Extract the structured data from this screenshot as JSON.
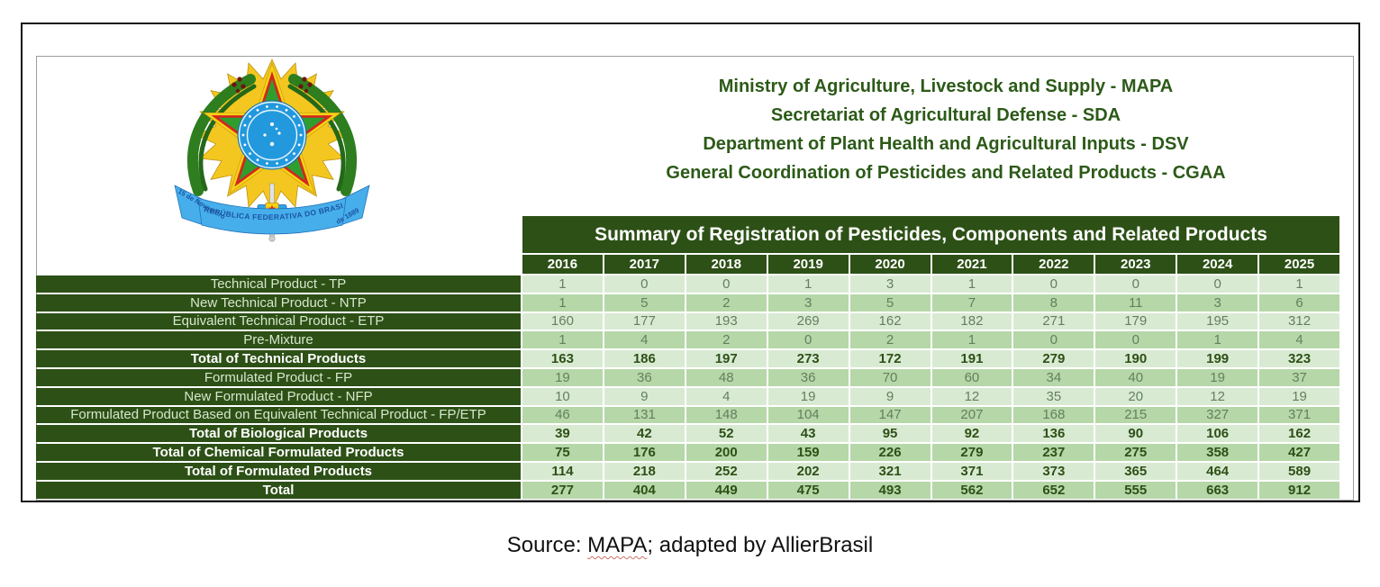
{
  "header": {
    "lines": [
      "Ministry of Agriculture, Livestock and Supply - MAPA",
      "Secretariat of Agricultural Defense - SDA",
      "Department of Plant Health and Agricultural Inputs - DSV",
      "General Coordination of Pesticides and Related Products - CGAA"
    ]
  },
  "emblem": {
    "name": "Coat of arms of Brazil",
    "ribbon_text": "REPÚBLICA FEDERATIVA DO BRASIL",
    "ribbon_left": "15 de Novembro",
    "ribbon_right": "de 1889"
  },
  "table": {
    "title": "Summary of Registration of Pesticides, Components and Related Products",
    "years": [
      "2016",
      "2017",
      "2018",
      "2019",
      "2020",
      "2021",
      "2022",
      "2023",
      "2024",
      "2025"
    ],
    "rows": [
      {
        "label": "Technical Product - TP",
        "bold": false,
        "values": [
          1,
          0,
          0,
          1,
          3,
          1,
          0,
          0,
          0,
          1
        ]
      },
      {
        "label": "New Technical Product - NTP",
        "bold": false,
        "values": [
          1,
          5,
          2,
          3,
          5,
          7,
          8,
          11,
          3,
          6
        ]
      },
      {
        "label": "Equivalent Technical Product - ETP",
        "bold": false,
        "values": [
          160,
          177,
          193,
          269,
          162,
          182,
          271,
          179,
          195,
          312
        ]
      },
      {
        "label": "Pre-Mixture",
        "bold": false,
        "values": [
          1,
          4,
          2,
          0,
          2,
          1,
          0,
          0,
          1,
          4
        ]
      },
      {
        "label": "Total of Technical Products",
        "bold": true,
        "values": [
          163,
          186,
          197,
          273,
          172,
          191,
          279,
          190,
          199,
          323
        ]
      },
      {
        "label": "Formulated Product - FP",
        "bold": false,
        "values": [
          19,
          36,
          48,
          36,
          70,
          60,
          34,
          40,
          19,
          37
        ]
      },
      {
        "label": "New Formulated Product - NFP",
        "bold": false,
        "values": [
          10,
          9,
          4,
          19,
          9,
          12,
          35,
          20,
          12,
          19
        ]
      },
      {
        "label": "Formulated Product Based on Equivalent Technical Product - FP/ETP",
        "bold": false,
        "values": [
          46,
          131,
          148,
          104,
          147,
          207,
          168,
          215,
          327,
          371
        ]
      },
      {
        "label": "Total of Biological Products",
        "bold": true,
        "values": [
          39,
          42,
          52,
          43,
          95,
          92,
          136,
          90,
          106,
          162
        ]
      },
      {
        "label": "Total of Chemical Formulated Products",
        "bold": true,
        "values": [
          75,
          176,
          200,
          159,
          226,
          279,
          237,
          275,
          358,
          427
        ]
      },
      {
        "label": "Total of Formulated Products",
        "bold": true,
        "values": [
          114,
          218,
          252,
          202,
          321,
          371,
          373,
          365,
          464,
          589
        ]
      },
      {
        "label": "Total",
        "bold": true,
        "values": [
          277,
          404,
          449,
          475,
          493,
          562,
          652,
          555,
          663,
          912
        ]
      }
    ]
  },
  "source": {
    "prefix": "Source: ",
    "word": "MAPA",
    "suffix": "; adapted by AllierBrasil"
  },
  "colors": {
    "dark_green": "#2d5016",
    "row_light": "#d9ead3",
    "row_medium": "#b6d7a8",
    "value_text": "#647f5e",
    "header_text": "#2c5a18",
    "ribbon_blue": "#47aeec"
  }
}
